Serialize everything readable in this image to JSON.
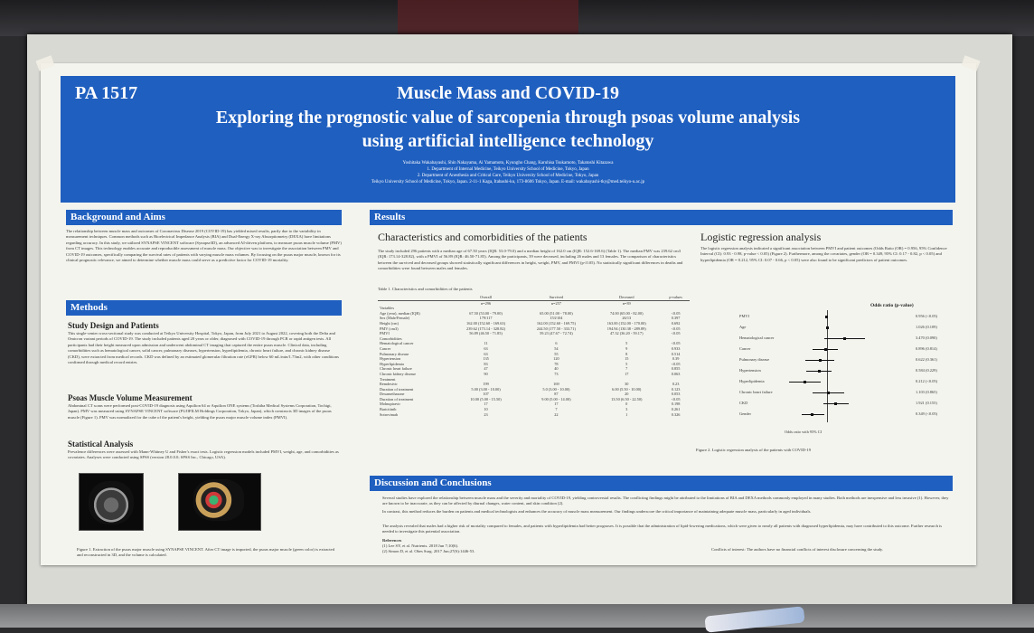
{
  "poster": {
    "id": "PA 1517",
    "title_line1": "Muscle Mass and COVID-19",
    "title_line2": "Exploring the prognostic value of sarcopenia through psoas volume analysis",
    "title_line3": "using artificial intelligence technology",
    "authors": "Yoshitaka Wakabayashi, Shin Nakayama, Ai Yamamoto, Kyungho Chang, Karuhisa Tsukamoto, Takatoshi Kitazawa",
    "affiliation1": "1. Department of Internal Medicine, Teikyo University School of Medicine, Tokyo, Japan",
    "affiliation2": "2. Department of Anesthesia and Critical Care, Teikyo University School of Medicine, Tokyo, Japan",
    "address": "Teikyo University School of Medicine, Tokyo, Japan. 2-11-1 Kaga, Itabashi-ku, 173-8606 Tokyo, Japan. E-mail: wakabayashi-tky@med.teikyo-u.ac.jp"
  },
  "sections": {
    "background": "Background and Aims",
    "methods": "Methods",
    "study_design": "Study Design and Patients",
    "psoas": "Psoas Muscle Volume Measurement",
    "statistics": "Statistical Analysis",
    "results": "Results",
    "characteristics": "Characteristics and comorbidities of the patients",
    "logistic": "Logistic regression analysis",
    "discussion": "Discussion and Conclusions"
  },
  "text": {
    "background_body": "The relationship between muscle mass and outcomes of Coronavirus Disease 2019 (COVID-19) has yielded mixed results, partly due to the variability in measurement techniques. Common methods such as Bioelectrical Impedance Analysis (BIA) and Dual-Energy X-ray Absorptiometry (DEXA) have limitations regarding accuracy. In this study, we utilized SYNAPSE VINCENT software (Synapse3D), an advanced AI-driven platform, to measure psoas muscle volume (PMV) from CT images. This technology enables accurate and reproducible assessment of muscle mass. Our objective was to investigate the association between PMV and COVID-19 outcomes, specifically comparing the survival rates of patients with varying muscle mass volumes. By focusing on the psoas major muscle, known for its clinical prognostic relevance, we aimed to determine whether muscle mass could serve as a predictive factor for COVID-19 mortality.",
    "study_body": "This single-center cross-sectional study was conducted at Teikyo University Hospital, Tokyo, Japan, from July 2021 to August 2022, covering both the Delta and Omicron variant periods of COVID-19. The study included patients aged 20 years or older, diagnosed with COVID-19 through PCR or rapid antigen tests. All participants had their height measured upon admission and underwent abdominal CT imaging that captured the entire psoas muscle. Clinical data, including comorbidities such as hematological cancer, solid cancer, pulmonary diseases, hypertension, hyperlipidemia, chronic heart failure, and chronic kidney disease (CKD), were extracted from medical records. CKD was defined by an estimated glomerular filtration rate (eGFR) below 60 mL/min/1.73m2, with other conditions confirmed through medical record entries.",
    "psoas_body": "Abdominal CT scans were performed post-COVID-19 diagnosis using Aquilion 64 or Aquilion ONE systems (Toshiba Medical Systems Corporation, Tochigi, Japan). PMV was measured using SYNAPSE VINCENT software (FUJIFILM Holdings Corporation, Tokyo, Japan), which constructs 3D images of the psoas muscle (Figure 1). PMV was normalized for the cube of the patient's height, yielding the psoas major muscle volume index (PMVI).",
    "stats_body": "Prevalence differences were assessed with Mann-Whitney U and Fisher's exact tests. Logistic regression models included PMVI, weight, age, and comorbidities as covariates. Analyses were conducted using SPSS (version 28.0.0.0; SPSS Inc., Chicago, USA).",
    "figure1_caption": "Figure 1. Extraction of the psoas major muscle using SYNAPSE VINCENT. After CT image is imported, the psoas major muscle (green color) is extracted and reconstructed in 3D, and the volume is calculated.",
    "results_body": "The study included 296 patients with a median age of 67.50 years (IQR: 53.0-79.0) and a median height of 162.0 cm (IQR: 152.6-169.6) (Table 1). The median PMV was 239.62 cm3 (IQR: 173.14-328.82), with a PMVI of 56.89 (IQR: 46.50-71.85). Among the participants, 39 were deceased, including 26 males and 13 females. The comparison of characteristics between the survived and deceased groups showed statistically significant differences in height, weight, PMV, and PMVI (p<0.05). No statistically significant differences in deaths and comorbidities were found between males and females.",
    "table_caption": "Table 1. Characteristics and comorbidities of the patients",
    "logistic_body": "The logistic regression analysis indicated a significant association between PMVI and patient outcomes (Odds Ratio (OR) = 0.956, 95% Confidence Interval (CI): 0.93 - 0.98, p-value < 0.05) (Figure 2). Furthermore, among the covariates, gender (OR = 0.349, 95% CI: 0.17 - 0.82, p < 0.05) and hyperlipidemia (OR = 0.212, 95% CI: 0.07 - 0.66, p < 0.05) were also found to be significant predictors of patient outcomes.",
    "figure2_caption": "Figure 2. Logistic regression analysis of the patients with COVID-19",
    "discussion_body1": "Several studies have explored the relationship between muscle mass and the severity and mortality of COVID-19, yielding controversial results. The conflicting findings might be attributed to the limitations of BIA and DEXA methods commonly employed in many studies. Both methods are inexpensive and less invasive (1). However, they are known to be inaccurate, as they can be affected by diurnal changes, water content, and skin condition (2).",
    "discussion_body2": "In contrast, this method reduces the burden on patients and medical technologists and enhances the accuracy of muscle mass measurement. Our findings underscore the critical importance of maintaining adequate muscle mass, particularly in aged individuals.",
    "discussion_body3": "The analysis revealed that males had a higher risk of mortality compared to females, and patients with hyperlipidemia had better prognoses. It is possible that the administration of lipid-lowering medications, which were given to nearly all patients with diagnosed hyperlipidemia, may have contributed to this outcome. Further research is needed to investigate this potential association.",
    "references_title": "References",
    "ref1": "(1) Lee SY, et al. Nutrients. 2018 Jun 7;10(6).",
    "ref2": "(2) Simon D, et al. Obes Surg. 2017 Jun;27(6):1446-53.",
    "conflict": "Conflicts of interest: The authors have no financial conflicts of interest disclosure concerning the study."
  },
  "table": {
    "headers": [
      "",
      "Overall",
      "Survived",
      "Deceased",
      "p-values"
    ],
    "n_row": [
      "",
      "n=296",
      "n=257",
      "n=39",
      ""
    ],
    "rows": [
      [
        "Variables",
        "",
        "",
        "",
        ""
      ],
      [
        "Age (year), median (IQR)",
        "67.50 (53.00 - 79.00)",
        "65.00 (51.00 - 78.00)",
        "74.00 (65.00 - 82.00)",
        "<0.05"
      ],
      [
        "Sex (Male/Female)",
        "179/117",
        "153/104",
        "26/13",
        "0.397"
      ],
      [
        "Height (cm)",
        "162.00 (152.60 - 169.63)",
        "162.00 (152.60 - 169.75)",
        "163.00 (152.00 - 170.00)",
        "0.692"
      ],
      [
        "PMV (cm3)",
        "239.62 (173.14 - 328.82)",
        "244.50 (177.50 - 333.71)",
        "194.94 (130.38 - 289.89)",
        "<0.05"
      ],
      [
        "PMVI",
        "56.89 (46.50 - 71.85)",
        "59.23 (47.67 - 72.74)",
        "47.32 (36.20 - 59.17)",
        "<0.05"
      ],
      [
        "",
        "",
        "",
        "",
        ""
      ],
      [
        "Comorbidities",
        "",
        "",
        "",
        ""
      ],
      [
        "Hematological cancer",
        "11",
        "6",
        "5",
        "<0.05"
      ],
      [
        "Cancer",
        "63",
        "54",
        "9",
        "0.933"
      ],
      [
        "Pulmonary disease",
        "63",
        "55",
        "8",
        "0.514"
      ],
      [
        "Hypertension",
        "135",
        "120",
        "15",
        "0.39"
      ],
      [
        "Hyperlipidemia",
        "83",
        "78",
        "5",
        "<0.05"
      ],
      [
        "Chronic heart failure",
        "47",
        "40",
        "7",
        "0.855"
      ],
      [
        "Chronic kidney disease",
        "90",
        "73",
        "17",
        "0.063"
      ],
      [
        "",
        "",
        "",
        "",
        ""
      ],
      [
        "Treatment",
        "",
        "",
        "",
        ""
      ],
      [
        "Remdesivir",
        "199",
        "169",
        "30",
        "0.23"
      ],
      [
        "Duration of treatment",
        "5.00 (3.00 - 10.00)",
        "5.0 (3.00 - 10.00)",
        "6.00 (5.50 - 10.00)",
        "0.123"
      ],
      [
        "Dexamethasone",
        "107",
        "87",
        "20",
        "0.053"
      ],
      [
        "Duration of treatment",
        "10.00 (5.00 - 15.50)",
        "9.00 (5.00 - 14.00)",
        "13.50 (6.50 - 22.50)",
        "<0.05"
      ],
      [
        "Molnupiravir",
        "17",
        "17",
        "0",
        "0.198"
      ],
      [
        "Baricitinib",
        "10",
        "7",
        "3",
        "0.261"
      ],
      [
        "Sotrovimab",
        "23",
        "22",
        "1",
        "0.326"
      ]
    ]
  },
  "forest": {
    "title": "Odds ratio (p-value)",
    "axis_label": "Odds ratio with 95% CI",
    "rows": [
      {
        "label": "PMVI",
        "value": "0.956 (<0.05)",
        "or": 0.956,
        "lo": 0.93,
        "hi": 0.98
      },
      {
        "label": "Age",
        "value": "1.026 (0.109)",
        "or": 1.026,
        "lo": 0.99,
        "hi": 1.06
      },
      {
        "label": "Hematological cancer",
        "value": "3.470 (0.090)",
        "or": 3.47,
        "lo": 0.82,
        "hi": 14.6
      },
      {
        "label": "Cancer",
        "value": "0.896 (0.814)",
        "or": 0.896,
        "lo": 0.36,
        "hi": 2.23
      },
      {
        "label": "Pulmonary disease",
        "value": "0.622 (0.361)",
        "or": 0.622,
        "lo": 0.22,
        "hi": 1.72
      },
      {
        "label": "Hypertension",
        "value": "0.584 (0.229)",
        "or": 0.584,
        "lo": 0.24,
        "hi": 1.4
      },
      {
        "label": "Hyperlipidemia",
        "value": "0.212 (<0.05)",
        "or": 0.212,
        "lo": 0.07,
        "hi": 0.66
      },
      {
        "label": "Chronic heart failure",
        "value": "1.103 (0.865)",
        "or": 1.103,
        "lo": 0.36,
        "hi": 3.38
      },
      {
        "label": "CKD",
        "value": "1.921 (0.155)",
        "or": 1.921,
        "lo": 0.78,
        "hi": 4.73
      },
      {
        "label": "Gender",
        "value": "0.349 (<0.05)",
        "or": 0.349,
        "lo": 0.17,
        "hi": 0.82
      }
    ]
  },
  "colors": {
    "accent": "#1f5fbf",
    "paper": "#f4f4ef",
    "board": "#d9d9d4"
  }
}
